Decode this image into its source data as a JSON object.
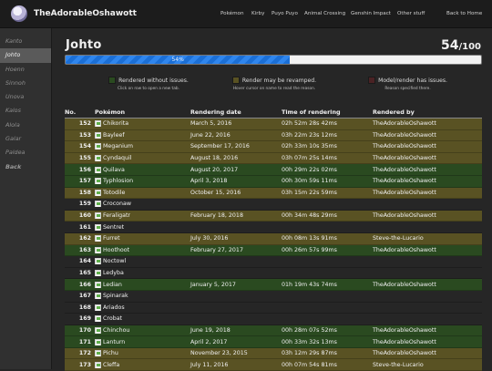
{
  "site": {
    "title": "TheAdorableOshawott",
    "logo_icon": "oshawott-logo-icon",
    "nav": [
      "Pokémon",
      "Kirby",
      "Puyo Puyo",
      "Animal Crossing",
      "Genshin Impact",
      "Other stuff",
      "Back to Home"
    ]
  },
  "sidebar": {
    "items": [
      {
        "label": "Kanto",
        "active": false
      },
      {
        "label": "Johto",
        "active": true
      },
      {
        "label": "Hoenn",
        "active": false
      },
      {
        "label": "Sinnoh",
        "active": false
      },
      {
        "label": "Unova",
        "active": false
      },
      {
        "label": "Kalos",
        "active": false
      },
      {
        "label": "Alola",
        "active": false
      },
      {
        "label": "Galar",
        "active": false
      },
      {
        "label": "Paldea",
        "active": false
      },
      {
        "label": "Back",
        "active": false
      }
    ]
  },
  "region": {
    "title": "Johto",
    "done": "54",
    "total": "/100",
    "progress_label": "54%",
    "progress_percent": 54
  },
  "legend": [
    {
      "label": "Rendered without issues.",
      "hint": "Click on row to open a new tab.",
      "color": "#2a4a20"
    },
    {
      "label": "Render may be revamped.",
      "hint": "Hover cursor on name to read the reason.",
      "color": "#595223"
    },
    {
      "label": "Model/render has issues.",
      "hint": "Reason specified there.",
      "color": "#4a2224"
    }
  ],
  "table": {
    "headers": {
      "no": "No.",
      "pokemon": "Pokémon",
      "date": "Rendering date",
      "time": "Time of rendering",
      "by": "Rendered by"
    },
    "rows": [
      {
        "no": "152",
        "name": "Chikorita",
        "date": "March 5, 2016",
        "time": "02h 52m 28s 42ms",
        "by": "TheAdorableOshawott",
        "status": "revamp"
      },
      {
        "no": "153",
        "name": "Bayleef",
        "date": "June 22, 2016",
        "time": "03h 22m 23s 12ms",
        "by": "TheAdorableOshawott",
        "status": "revamp"
      },
      {
        "no": "154",
        "name": "Meganium",
        "date": "September 17, 2016",
        "time": "02h 33m 10s 35ms",
        "by": "TheAdorableOshawott",
        "status": "revamp"
      },
      {
        "no": "155",
        "name": "Cyndaquil",
        "date": "August 18, 2016",
        "time": "03h 07m 25s 14ms",
        "by": "TheAdorableOshawott",
        "status": "revamp"
      },
      {
        "no": "156",
        "name": "Quilava",
        "date": "August 20, 2017",
        "time": "00h 29m 22s 02ms",
        "by": "TheAdorableOshawott",
        "status": "ok"
      },
      {
        "no": "157",
        "name": "Typhlosion",
        "date": "April 3, 2018",
        "time": "00h 30m 59s 11ms",
        "by": "TheAdorableOshawott",
        "status": "ok"
      },
      {
        "no": "158",
        "name": "Totodile",
        "date": "October 15, 2016",
        "time": "03h 15m 22s 59ms",
        "by": "TheAdorableOshawott",
        "status": "revamp"
      },
      {
        "no": "159",
        "name": "Croconaw",
        "date": "",
        "time": "",
        "by": "",
        "status": "none"
      },
      {
        "no": "160",
        "name": "Feraligatr",
        "date": "February 18, 2018",
        "time": "00h 34m 48s 29ms",
        "by": "TheAdorableOshawott",
        "status": "revamp"
      },
      {
        "no": "161",
        "name": "Sentret",
        "date": "",
        "time": "",
        "by": "",
        "status": "none"
      },
      {
        "no": "162",
        "name": "Furret",
        "date": "July 30, 2016",
        "time": "00h 08m 13s 91ms",
        "by": "Steve-the-Lucario",
        "status": "revamp"
      },
      {
        "no": "163",
        "name": "Hoothoot",
        "date": "February 27, 2017",
        "time": "00h 26m 57s 99ms",
        "by": "TheAdorableOshawott",
        "status": "ok"
      },
      {
        "no": "164",
        "name": "Noctowl",
        "date": "",
        "time": "",
        "by": "",
        "status": "none"
      },
      {
        "no": "165",
        "name": "Ledyba",
        "date": "",
        "time": "",
        "by": "",
        "status": "none"
      },
      {
        "no": "166",
        "name": "Ledian",
        "date": "January 5, 2017",
        "time": "01h 19m 43s 74ms",
        "by": "TheAdorableOshawott",
        "status": "ok"
      },
      {
        "no": "167",
        "name": "Spinarak",
        "date": "",
        "time": "",
        "by": "",
        "status": "none"
      },
      {
        "no": "168",
        "name": "Ariados",
        "date": "",
        "time": "",
        "by": "",
        "status": "none"
      },
      {
        "no": "169",
        "name": "Crobat",
        "date": "",
        "time": "",
        "by": "",
        "status": "none"
      },
      {
        "no": "170",
        "name": "Chinchou",
        "date": "June 19, 2018",
        "time": "00h 28m 07s 52ms",
        "by": "TheAdorableOshawott",
        "status": "ok"
      },
      {
        "no": "171",
        "name": "Lanturn",
        "date": "April 2, 2017",
        "time": "00h 33m 32s 13ms",
        "by": "TheAdorableOshawott",
        "status": "ok"
      },
      {
        "no": "172",
        "name": "Pichu",
        "date": "November 23, 2015",
        "time": "03h 12m 29s 87ms",
        "by": "TheAdorableOshawott",
        "status": "revamp"
      },
      {
        "no": "173",
        "name": "Cleffa",
        "date": "July 11, 2016",
        "time": "00h 07m 54s 81ms",
        "by": "Steve-the-Lucario",
        "status": "revamp"
      }
    ]
  }
}
